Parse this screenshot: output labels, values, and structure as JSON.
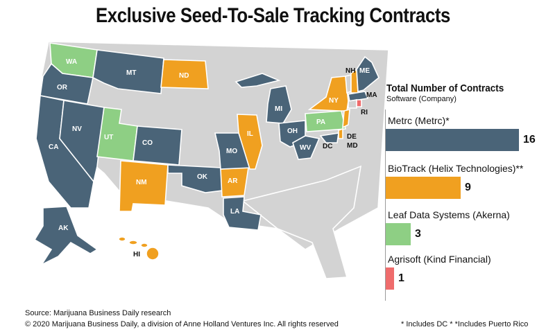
{
  "title": "Exclusive Seed-To-Sale Tracking Contracts",
  "colors": {
    "metrc": "#4a6478",
    "biotrack": "#f0a020",
    "leaf": "#8ecf84",
    "agrisoft": "#ef6c6c",
    "none": "#d3d3d3"
  },
  "map_labels": {
    "wa": "WA",
    "or": "OR",
    "ca": "CA",
    "nv": "NV",
    "mt": "MT",
    "ut": "UT",
    "co": "CO",
    "nm": "NM",
    "nd": "ND",
    "ok": "OK",
    "ar": "AR",
    "la": "LA",
    "mo": "MO",
    "il": "IL",
    "mi": "MI",
    "oh": "OH",
    "wv": "WV",
    "pa": "PA",
    "ny": "NY",
    "nh": "NH",
    "me": "ME",
    "ma": "MA",
    "ri": "RI",
    "de": "DE",
    "md": "MD",
    "dc": "DC",
    "ak": "AK",
    "hi": "HI"
  },
  "legend": {
    "title": "Total Number of Contracts",
    "subtitle": "Software (Company)"
  },
  "chart_data": {
    "type": "bar",
    "title": "Total Number of Contracts",
    "subtitle": "Software (Company)",
    "categories": [
      "Metrc (Metrc)*",
      "BioTrack (Helix Technologies)**",
      "Leaf Data Systems (Akerna)",
      "Agrisoft (Kind Financial)"
    ],
    "values": [
      16,
      9,
      3,
      1
    ],
    "value_labels": [
      "16",
      "9",
      "3",
      "1"
    ],
    "bar_colors": [
      "#4a6478",
      "#f0a020",
      "#8ecf84",
      "#ef6c6c"
    ],
    "orientation": "horizontal",
    "xlim": [
      0,
      16
    ]
  },
  "footer": {
    "source": "Source: Marijuana Business Daily research",
    "copyright": "© 2020 Marijuana Business Daily, a division of Anne Holland Ventures Inc. All rights reserved",
    "note": "* Includes DC * *Includes Puerto Rico"
  }
}
